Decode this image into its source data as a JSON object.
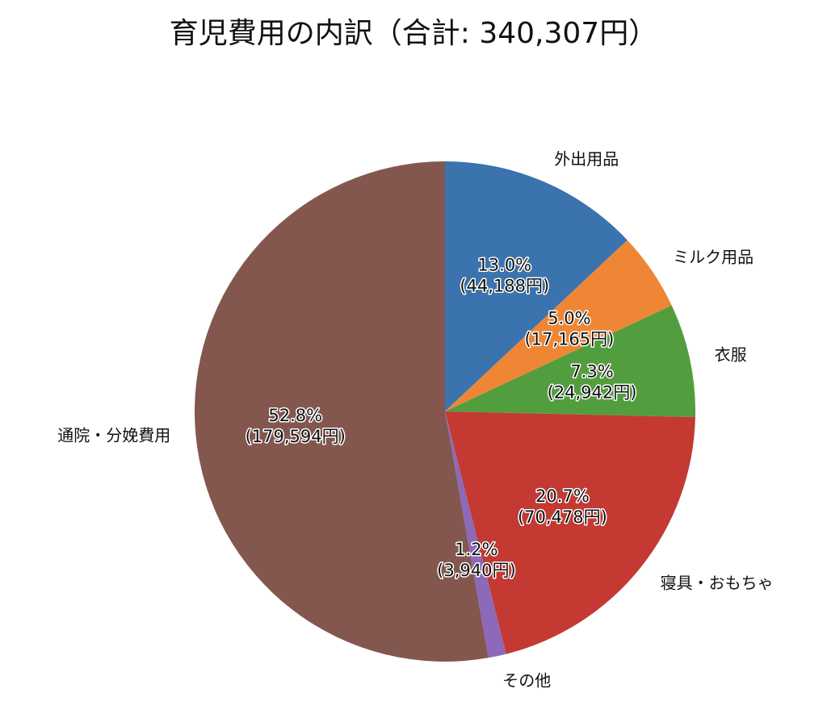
{
  "chart_data": {
    "type": "pie",
    "title": "育児費用の内訳（合計: 340,307円）",
    "start_angle_deg": 90,
    "direction": "clockwise",
    "slices": [
      {
        "label": "外出用品",
        "value": 44188,
        "percent_label": "13.0%",
        "value_label": "(44,188円)",
        "color": "#3a73ae"
      },
      {
        "label": "ミルク用品",
        "value": 17165,
        "percent_label": "5.0%",
        "value_label": "(17,165円)",
        "color": "#ef8636"
      },
      {
        "label": "衣服",
        "value": 24942,
        "percent_label": "7.3%",
        "value_label": "(24,942円)",
        "color": "#529e3f"
      },
      {
        "label": "寝具・おもちゃ",
        "value": 70478,
        "percent_label": "20.7%",
        "value_label": "(70,478円)",
        "color": "#c43932"
      },
      {
        "label": "その他",
        "value": 3940,
        "percent_label": "1.2%",
        "value_label": "(3,940円)",
        "color": "#8c69b9"
      },
      {
        "label": "通院・分娩費用",
        "value": 179594,
        "percent_label": "52.8%",
        "value_label": "(179,594円)",
        "color": "#84574e"
      }
    ]
  }
}
